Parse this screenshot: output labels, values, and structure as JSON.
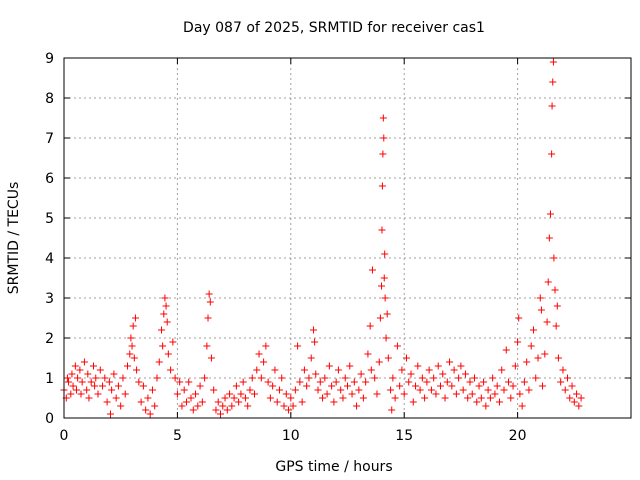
{
  "chart_data": {
    "type": "scatter",
    "title": "Day 087 of 2025, SRMTID for receiver cas1",
    "xlabel": "GPS time / hours",
    "ylabel": "SRMTID / TECUs",
    "xlim": [
      0,
      25
    ],
    "ylim": [
      0,
      9
    ],
    "xticks": [
      0,
      5,
      10,
      15,
      20
    ],
    "xtick_labels": [
      "0",
      "5",
      "10",
      "15",
      "20"
    ],
    "yticks": [
      0,
      1,
      2,
      3,
      4,
      5,
      6,
      7,
      8,
      9
    ],
    "ytick_labels": [
      "0",
      "1",
      "2",
      "3",
      "4",
      "5",
      "6",
      "7",
      "8",
      "9"
    ],
    "grid": true,
    "marker": "+",
    "color": "#ff0000",
    "series": [
      {
        "name": "cas1",
        "points": [
          [
            0.0,
            0.7
          ],
          [
            0.1,
            0.5
          ],
          [
            0.15,
            1.0
          ],
          [
            0.2,
            0.9
          ],
          [
            0.3,
            0.6
          ],
          [
            0.35,
            1.1
          ],
          [
            0.4,
            0.8
          ],
          [
            0.5,
            1.3
          ],
          [
            0.55,
            0.7
          ],
          [
            0.6,
            1.0
          ],
          [
            0.7,
            1.2
          ],
          [
            0.75,
            0.6
          ],
          [
            0.8,
            0.9
          ],
          [
            0.9,
            1.4
          ],
          [
            1.0,
            0.7
          ],
          [
            1.05,
            1.1
          ],
          [
            1.1,
            0.5
          ],
          [
            1.2,
            0.9
          ],
          [
            1.3,
            1.3
          ],
          [
            1.35,
            0.8
          ],
          [
            1.4,
            1.0
          ],
          [
            1.5,
            0.6
          ],
          [
            1.6,
            1.2
          ],
          [
            1.7,
            0.8
          ],
          [
            1.8,
            1.0
          ],
          [
            1.9,
            0.4
          ],
          [
            2.0,
            0.9
          ],
          [
            2.05,
            0.1
          ],
          [
            2.1,
            0.7
          ],
          [
            2.2,
            1.1
          ],
          [
            2.3,
            0.5
          ],
          [
            2.4,
            0.8
          ],
          [
            2.5,
            0.3
          ],
          [
            2.6,
            1.0
          ],
          [
            2.7,
            0.6
          ],
          [
            2.8,
            1.3
          ],
          [
            2.9,
            1.6
          ],
          [
            2.95,
            2.0
          ],
          [
            3.0,
            1.8
          ],
          [
            3.05,
            2.3
          ],
          [
            3.1,
            1.5
          ],
          [
            3.15,
            2.5
          ],
          [
            3.2,
            1.2
          ],
          [
            3.3,
            0.9
          ],
          [
            3.4,
            0.4
          ],
          [
            3.5,
            0.8
          ],
          [
            3.6,
            0.2
          ],
          [
            3.7,
            0.5
          ],
          [
            3.8,
            0.1
          ],
          [
            3.9,
            0.7
          ],
          [
            4.0,
            0.3
          ],
          [
            4.1,
            1.0
          ],
          [
            4.2,
            1.4
          ],
          [
            4.3,
            2.2
          ],
          [
            4.35,
            1.8
          ],
          [
            4.4,
            2.6
          ],
          [
            4.45,
            3.0
          ],
          [
            4.5,
            2.8
          ],
          [
            4.55,
            2.4
          ],
          [
            4.6,
            1.6
          ],
          [
            4.7,
            1.2
          ],
          [
            4.8,
            1.9
          ],
          [
            4.9,
            1.0
          ],
          [
            5.0,
            0.6
          ],
          [
            5.1,
            0.9
          ],
          [
            5.2,
            0.3
          ],
          [
            5.3,
            0.7
          ],
          [
            5.4,
            0.4
          ],
          [
            5.5,
            0.9
          ],
          [
            5.6,
            0.5
          ],
          [
            5.7,
            0.2
          ],
          [
            5.8,
            0.6
          ],
          [
            5.9,
            0.3
          ],
          [
            6.0,
            0.8
          ],
          [
            6.1,
            0.4
          ],
          [
            6.2,
            1.0
          ],
          [
            6.3,
            1.8
          ],
          [
            6.35,
            2.5
          ],
          [
            6.4,
            3.1
          ],
          [
            6.45,
            2.9
          ],
          [
            6.5,
            1.5
          ],
          [
            6.6,
            0.7
          ],
          [
            6.7,
            0.2
          ],
          [
            6.8,
            0.4
          ],
          [
            6.9,
            0.1
          ],
          [
            7.0,
            0.3
          ],
          [
            7.1,
            0.5
          ],
          [
            7.2,
            0.2
          ],
          [
            7.3,
            0.6
          ],
          [
            7.4,
            0.3
          ],
          [
            7.5,
            0.5
          ],
          [
            7.6,
            0.8
          ],
          [
            7.7,
            0.4
          ],
          [
            7.8,
            0.6
          ],
          [
            7.9,
            0.9
          ],
          [
            8.0,
            0.5
          ],
          [
            8.1,
            0.3
          ],
          [
            8.2,
            0.7
          ],
          [
            8.3,
            1.0
          ],
          [
            8.4,
            0.6
          ],
          [
            8.5,
            1.2
          ],
          [
            8.6,
            1.6
          ],
          [
            8.7,
            1.0
          ],
          [
            8.8,
            1.4
          ],
          [
            8.9,
            1.8
          ],
          [
            9.0,
            0.9
          ],
          [
            9.1,
            0.5
          ],
          [
            9.2,
            0.8
          ],
          [
            9.3,
            1.2
          ],
          [
            9.4,
            0.4
          ],
          [
            9.5,
            0.7
          ],
          [
            9.6,
            1.0
          ],
          [
            9.7,
            0.3
          ],
          [
            9.8,
            0.6
          ],
          [
            9.9,
            0.2
          ],
          [
            10.0,
            0.5
          ],
          [
            10.1,
            0.3
          ],
          [
            10.2,
            0.7
          ],
          [
            10.3,
            1.8
          ],
          [
            10.4,
            0.9
          ],
          [
            10.5,
            0.4
          ],
          [
            10.6,
            1.2
          ],
          [
            10.7,
            0.8
          ],
          [
            10.8,
            1.0
          ],
          [
            10.9,
            1.5
          ],
          [
            11.0,
            2.2
          ],
          [
            11.05,
            1.9
          ],
          [
            11.1,
            1.1
          ],
          [
            11.2,
            0.7
          ],
          [
            11.3,
            0.9
          ],
          [
            11.4,
            0.5
          ],
          [
            11.5,
            1.0
          ],
          [
            11.6,
            0.6
          ],
          [
            11.7,
            1.3
          ],
          [
            11.8,
            0.8
          ],
          [
            11.9,
            0.4
          ],
          [
            12.0,
            0.9
          ],
          [
            12.1,
            1.2
          ],
          [
            12.2,
            0.7
          ],
          [
            12.3,
            0.5
          ],
          [
            12.4,
            1.0
          ],
          [
            12.5,
            0.8
          ],
          [
            12.6,
            1.3
          ],
          [
            12.7,
            0.6
          ],
          [
            12.8,
            0.9
          ],
          [
            12.9,
            0.3
          ],
          [
            13.0,
            0.7
          ],
          [
            13.1,
            1.1
          ],
          [
            13.2,
            0.5
          ],
          [
            13.3,
            0.9
          ],
          [
            13.4,
            1.6
          ],
          [
            13.5,
            2.3
          ],
          [
            13.55,
            1.2
          ],
          [
            13.6,
            3.7
          ],
          [
            13.7,
            1.0
          ],
          [
            13.8,
            0.6
          ],
          [
            13.9,
            1.4
          ],
          [
            13.95,
            2.5
          ],
          [
            14.0,
            3.3
          ],
          [
            14.02,
            4.7
          ],
          [
            14.04,
            5.8
          ],
          [
            14.06,
            6.6
          ],
          [
            14.08,
            7.5
          ],
          [
            14.1,
            7.0
          ],
          [
            14.12,
            3.5
          ],
          [
            14.14,
            4.1
          ],
          [
            14.16,
            3.0
          ],
          [
            14.2,
            2.0
          ],
          [
            14.25,
            2.6
          ],
          [
            14.3,
            1.5
          ],
          [
            14.4,
            0.7
          ],
          [
            14.45,
            0.2
          ],
          [
            14.5,
            1.0
          ],
          [
            14.6,
            0.5
          ],
          [
            14.7,
            1.8
          ],
          [
            14.8,
            0.8
          ],
          [
            14.9,
            1.2
          ],
          [
            15.0,
            0.6
          ],
          [
            15.1,
            1.5
          ],
          [
            15.2,
            0.9
          ],
          [
            15.3,
            1.1
          ],
          [
            15.4,
            0.4
          ],
          [
            15.5,
            0.8
          ],
          [
            15.6,
            1.3
          ],
          [
            15.7,
            0.7
          ],
          [
            15.8,
            1.0
          ],
          [
            15.9,
            0.5
          ],
          [
            16.0,
            0.9
          ],
          [
            16.1,
            1.2
          ],
          [
            16.2,
            0.7
          ],
          [
            16.3,
            1.0
          ],
          [
            16.4,
            0.6
          ],
          [
            16.5,
            1.3
          ],
          [
            16.6,
            0.8
          ],
          [
            16.7,
            1.1
          ],
          [
            16.8,
            0.5
          ],
          [
            16.9,
            0.9
          ],
          [
            17.0,
            1.4
          ],
          [
            17.1,
            0.8
          ],
          [
            17.2,
            1.2
          ],
          [
            17.3,
            0.6
          ],
          [
            17.4,
            1.0
          ],
          [
            17.5,
            1.3
          ],
          [
            17.6,
            0.7
          ],
          [
            17.7,
            1.1
          ],
          [
            17.8,
            0.5
          ],
          [
            17.9,
            0.9
          ],
          [
            18.0,
            0.6
          ],
          [
            18.1,
            1.0
          ],
          [
            18.2,
            0.4
          ],
          [
            18.3,
            0.8
          ],
          [
            18.4,
            0.5
          ],
          [
            18.5,
            0.9
          ],
          [
            18.6,
            0.3
          ],
          [
            18.7,
            0.7
          ],
          [
            18.8,
            0.5
          ],
          [
            18.9,
            1.0
          ],
          [
            19.0,
            0.6
          ],
          [
            19.1,
            0.8
          ],
          [
            19.2,
            0.4
          ],
          [
            19.3,
            1.2
          ],
          [
            19.4,
            0.7
          ],
          [
            19.5,
            1.7
          ],
          [
            19.6,
            0.9
          ],
          [
            19.7,
            0.5
          ],
          [
            19.8,
            0.8
          ],
          [
            19.9,
            1.3
          ],
          [
            20.0,
            1.9
          ],
          [
            20.05,
            2.5
          ],
          [
            20.1,
            0.6
          ],
          [
            20.2,
            0.3
          ],
          [
            20.3,
            0.9
          ],
          [
            20.4,
            1.4
          ],
          [
            20.5,
            0.7
          ],
          [
            20.6,
            1.8
          ],
          [
            20.7,
            2.2
          ],
          [
            20.8,
            1.0
          ],
          [
            20.9,
            1.5
          ],
          [
            21.0,
            3.0
          ],
          [
            21.05,
            2.7
          ],
          [
            21.1,
            0.8
          ],
          [
            21.2,
            1.6
          ],
          [
            21.3,
            2.4
          ],
          [
            21.35,
            3.4
          ],
          [
            21.4,
            4.5
          ],
          [
            21.45,
            5.1
          ],
          [
            21.5,
            6.6
          ],
          [
            21.52,
            7.8
          ],
          [
            21.55,
            8.4
          ],
          [
            21.58,
            8.9
          ],
          [
            21.6,
            4.0
          ],
          [
            21.65,
            3.2
          ],
          [
            21.7,
            2.3
          ],
          [
            21.75,
            2.8
          ],
          [
            21.8,
            1.5
          ],
          [
            21.9,
            0.9
          ],
          [
            22.0,
            1.2
          ],
          [
            22.1,
            0.7
          ],
          [
            22.2,
            1.0
          ],
          [
            22.3,
            0.5
          ],
          [
            22.4,
            0.8
          ],
          [
            22.5,
            0.4
          ],
          [
            22.6,
            0.6
          ],
          [
            22.7,
            0.3
          ],
          [
            22.8,
            0.5
          ]
        ]
      }
    ]
  }
}
